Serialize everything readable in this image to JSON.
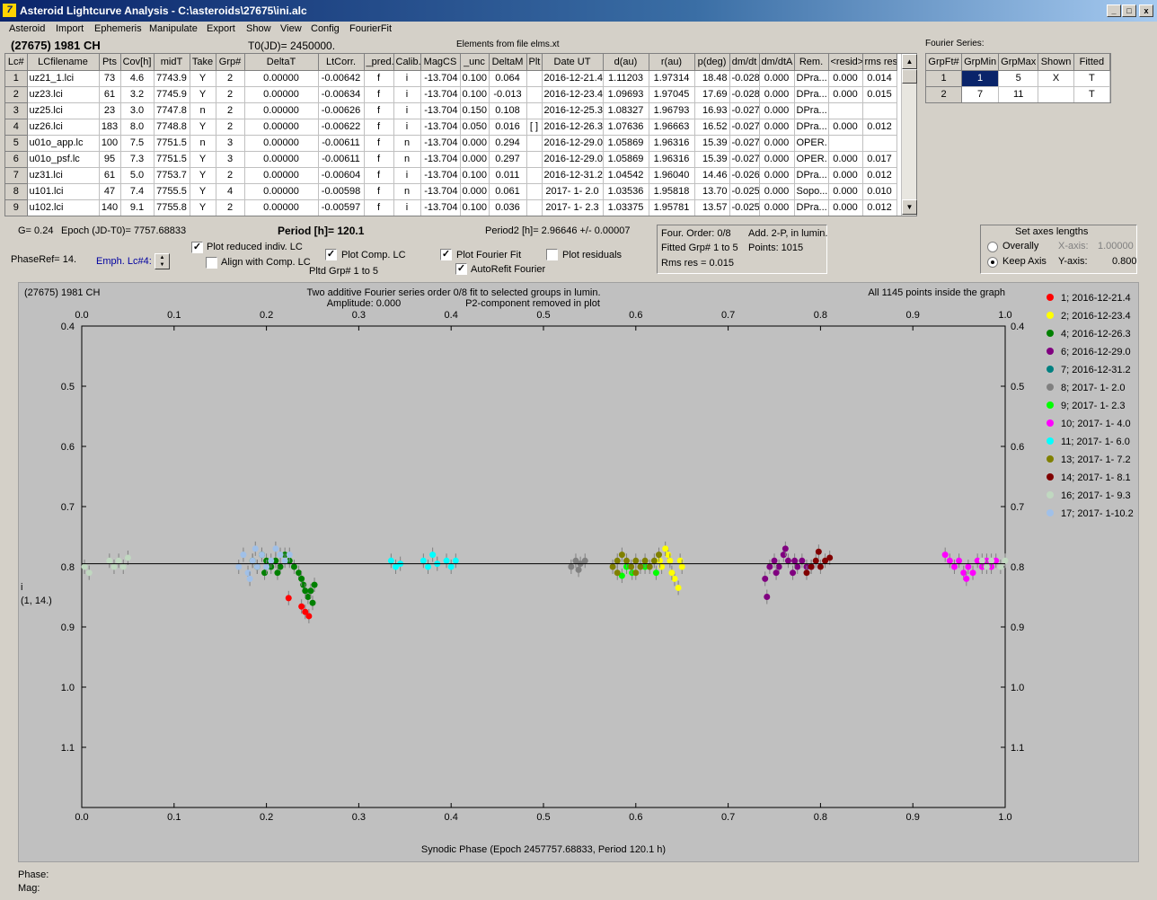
{
  "window": {
    "title": "Asteroid Lightcurve Analysis - C:\\asteroids\\27675\\ini.alc"
  },
  "menu": [
    "Asteroid",
    "Import",
    "Ephemeris",
    "Manipulate",
    "Export",
    "Show",
    "View",
    "Config",
    "FourierFit"
  ],
  "header": {
    "object": "(27675) 1981 CH",
    "t0": "T0(JD)= 2450000.",
    "elements": "Elements from file elms.xt",
    "fourier_title": "Fourier Series:"
  },
  "lc_table": {
    "columns": [
      "Lc#",
      "LCfilename",
      "Pts",
      "Cov[h]",
      "midT",
      "Take",
      "Grp#",
      "DeltaT",
      "LtCorr.",
      "_pred.",
      "Calib.",
      "MagCS",
      "_unc",
      "DeltaM",
      "Plt",
      "Date UT",
      "d(au)",
      "r(au)",
      "p(deg)",
      "dm/dt",
      "dm/dtA",
      "Rem.",
      "<resid>",
      "rms res"
    ],
    "rows": [
      [
        "1",
        "uz21_1.lci",
        "73",
        "4.6",
        "7743.9",
        "Y",
        "2",
        "0.00000",
        "-0.00642",
        "f",
        "i",
        "-13.704",
        "0.100",
        "0.064",
        "",
        "2016-12-21.4",
        "1.11203",
        "1.97314",
        "18.48",
        "-0.028",
        "0.000",
        "DPra...",
        "0.000",
        "0.014"
      ],
      [
        "2",
        "uz23.lci",
        "61",
        "3.2",
        "7745.9",
        "Y",
        "2",
        "0.00000",
        "-0.00634",
        "f",
        "i",
        "-13.704",
        "0.100",
        "-0.013",
        "",
        "2016-12-23.4",
        "1.09693",
        "1.97045",
        "17.69",
        "-0.028",
        "0.000",
        "DPra...",
        "0.000",
        "0.015"
      ],
      [
        "3",
        "uz25.lci",
        "23",
        "3.0",
        "7747.8",
        "n",
        "2",
        "0.00000",
        "-0.00626",
        "f",
        "i",
        "-13.704",
        "0.150",
        "0.108",
        "",
        "2016-12-25.3",
        "1.08327",
        "1.96793",
        "16.93",
        "-0.027",
        "0.000",
        "DPra...",
        "",
        ""
      ],
      [
        "4",
        "uz26.lci",
        "183",
        "8.0",
        "7748.8",
        "Y",
        "2",
        "0.00000",
        "-0.00622",
        "f",
        "i",
        "-13.704",
        "0.050",
        "0.016",
        "[ ]",
        "2016-12-26.3",
        "1.07636",
        "1.96663",
        "16.52",
        "-0.027",
        "0.000",
        "DPra...",
        "0.000",
        "0.012"
      ],
      [
        "5",
        "u01o_app.lc",
        "100",
        "7.5",
        "7751.5",
        "n",
        "3",
        "0.00000",
        "-0.00611",
        "f",
        "n",
        "-13.704",
        "0.000",
        "0.294",
        "",
        "2016-12-29.0",
        "1.05869",
        "1.96316",
        "15.39",
        "-0.027",
        "0.000",
        "OPER.",
        "",
        ""
      ],
      [
        "6",
        "u01o_psf.lc",
        "95",
        "7.3",
        "7751.5",
        "Y",
        "3",
        "0.00000",
        "-0.00611",
        "f",
        "n",
        "-13.704",
        "0.000",
        "0.297",
        "",
        "2016-12-29.0",
        "1.05869",
        "1.96316",
        "15.39",
        "-0.027",
        "0.000",
        "OPER.",
        "0.000",
        "0.017"
      ],
      [
        "7",
        "uz31.lci",
        "61",
        "5.0",
        "7753.7",
        "Y",
        "2",
        "0.00000",
        "-0.00604",
        "f",
        "i",
        "-13.704",
        "0.100",
        "0.011",
        "",
        "2016-12-31.2",
        "1.04542",
        "1.96040",
        "14.46",
        "-0.026",
        "0.000",
        "DPra...",
        "0.000",
        "0.012"
      ],
      [
        "8",
        "u101.lci",
        "47",
        "7.4",
        "7755.5",
        "Y",
        "4",
        "0.00000",
        "-0.00598",
        "f",
        "n",
        "-13.704",
        "0.000",
        "0.061",
        "",
        "2017- 1- 2.0",
        "1.03536",
        "1.95818",
        "13.70",
        "-0.025",
        "0.000",
        "Sopo...",
        "0.000",
        "0.010"
      ],
      [
        "9",
        "u102.lci",
        "140",
        "9.1",
        "7755.8",
        "Y",
        "2",
        "0.00000",
        "-0.00597",
        "f",
        "i",
        "-13.704",
        "0.100",
        "0.036",
        "",
        "2017- 1- 2.3",
        "1.03375",
        "1.95781",
        "13.57",
        "-0.025",
        "0.000",
        "DPra...",
        "0.000",
        "0.012"
      ]
    ]
  },
  "fourier_table": {
    "columns": [
      "GrpFt#",
      "GrpMin",
      "GrpMax",
      "Shown",
      "Fitted"
    ],
    "rows": [
      [
        "1",
        "1",
        "5",
        "X",
        "T"
      ],
      [
        "2",
        "7",
        "11",
        "",
        "T"
      ]
    ]
  },
  "info": {
    "g": "G= 0.24",
    "epoch": "Epoch (JD-T0)= 7757.68833",
    "period": "Period [h]= 120.1",
    "period2": "Period2 [h]= 2.96646 +/- 0.00007",
    "phaseref": "PhaseRef= 14.",
    "emph": "Emph. Lc#4:",
    "four_order": "Four. Order:  0/8",
    "add": "Add. 2-P, in lumin.",
    "fitted": "Fitted Grp# 1 to 5",
    "points": "Points: 1015",
    "rms": "Rms res     = 0.015"
  },
  "options": {
    "plot_reduced": "Plot reduced indiv. LC",
    "align": "Align with Comp. LC",
    "plot_comp": "Plot Comp. LC",
    "pltd": "Pltd Grp#  1   to    5",
    "plot_fourier": "Plot Fourier Fit",
    "autorefit": "AutoRefit Fourier",
    "plot_resid": "Plot residuals"
  },
  "axes_box": {
    "title": "Set axes lengths",
    "overally": "Overally",
    "keep": "Keep Axis",
    "xaxis": "X-axis:",
    "xval": "1.00000",
    "yaxis": "Y-axis:",
    "yval": "0.800"
  },
  "plot": {
    "name": "(27675) 1981 CH",
    "subtitle": "Two additive Fourier series order 0/8 fit to selected groups in lumin.",
    "amp": "Amplitude: 0.000",
    "p2": "P2-component removed in plot",
    "inside": "All 1145 points inside the graph",
    "ylab": "i",
    "ylab2": "(1, 14.)"
  },
  "footer": {
    "phase": "Phase:",
    "mag": "Mag:"
  },
  "chart_data": {
    "type": "scatter",
    "xlabel": "Synodic Phase (Epoch 2457757.68833, Period 120.1 h)",
    "xlim": [
      0,
      1.0
    ],
    "ylim": [
      1.2,
      0.4
    ],
    "xticks": [
      "0.0",
      "0.1",
      "0.2",
      "0.3",
      "0.4",
      "0.5",
      "0.6",
      "0.7",
      "0.8",
      "0.9",
      "1.0"
    ],
    "yticks": [
      "0.4",
      "0.5",
      "0.6",
      "0.7",
      "0.8",
      "0.9",
      "1.0",
      "1.1"
    ],
    "fit_line": 0.795,
    "series": [
      {
        "name": "1; 2016-12-21.4",
        "color": "#ff0000",
        "pts": [
          [
            0.224,
            0.852
          ],
          [
            0.242,
            0.875
          ],
          [
            0.246,
            0.882
          ],
          [
            0.238,
            0.866
          ]
        ]
      },
      {
        "name": "2; 2016-12-23.4",
        "color": "#ffff00",
        "pts": [
          [
            0.628,
            0.8
          ],
          [
            0.635,
            0.78
          ],
          [
            0.642,
            0.82
          ],
          [
            0.648,
            0.79
          ],
          [
            0.632,
            0.77
          ],
          [
            0.639,
            0.81
          ],
          [
            0.646,
            0.835
          ],
          [
            0.626,
            0.79
          ],
          [
            0.65,
            0.8
          ],
          [
            0.637,
            0.79
          ]
        ]
      },
      {
        "name": "4; 2016-12-26.3",
        "color": "#008000",
        "pts": [
          [
            0.185,
            0.79
          ],
          [
            0.19,
            0.8
          ],
          [
            0.195,
            0.78
          ],
          [
            0.2,
            0.79
          ],
          [
            0.205,
            0.8
          ],
          [
            0.21,
            0.79
          ],
          [
            0.215,
            0.8
          ],
          [
            0.22,
            0.78
          ],
          [
            0.225,
            0.79
          ],
          [
            0.23,
            0.8
          ],
          [
            0.235,
            0.81
          ],
          [
            0.24,
            0.83
          ],
          [
            0.245,
            0.85
          ],
          [
            0.25,
            0.86
          ],
          [
            0.242,
            0.84
          ],
          [
            0.238,
            0.82
          ],
          [
            0.248,
            0.84
          ],
          [
            0.252,
            0.83
          ],
          [
            0.198,
            0.81
          ],
          [
            0.212,
            0.81
          ]
        ]
      },
      {
        "name": "6; 2016-12-29.0",
        "color": "#800080",
        "pts": [
          [
            0.74,
            0.82
          ],
          [
            0.745,
            0.8
          ],
          [
            0.75,
            0.79
          ],
          [
            0.755,
            0.8
          ],
          [
            0.76,
            0.78
          ],
          [
            0.765,
            0.79
          ],
          [
            0.77,
            0.81
          ],
          [
            0.775,
            0.8
          ],
          [
            0.78,
            0.79
          ],
          [
            0.785,
            0.8
          ],
          [
            0.742,
            0.85
          ],
          [
            0.752,
            0.81
          ],
          [
            0.762,
            0.77
          ],
          [
            0.772,
            0.79
          ],
          [
            0.79,
            0.8
          ]
        ]
      },
      {
        "name": "7; 2016-12-31.2",
        "color": "#008080",
        "pts": []
      },
      {
        "name": "8; 2017- 1- 2.0",
        "color": "#808080",
        "pts": [
          [
            0.53,
            0.8
          ],
          [
            0.535,
            0.79
          ],
          [
            0.54,
            0.795
          ],
          [
            0.545,
            0.79
          ],
          [
            0.538,
            0.805
          ]
        ]
      },
      {
        "name": "9; 2017- 1- 2.3",
        "color": "#00ff00",
        "pts": [
          [
            0.585,
            0.815
          ],
          [
            0.59,
            0.8
          ],
          [
            0.596,
            0.81
          ],
          [
            0.61,
            0.8
          ],
          [
            0.622,
            0.81
          ]
        ]
      },
      {
        "name": "10; 2017- 1- 4.0",
        "color": "#ff00ff",
        "pts": [
          [
            0.935,
            0.78
          ],
          [
            0.94,
            0.79
          ],
          [
            0.945,
            0.8
          ],
          [
            0.95,
            0.79
          ],
          [
            0.955,
            0.81
          ],
          [
            0.96,
            0.8
          ],
          [
            0.965,
            0.81
          ],
          [
            0.97,
            0.79
          ],
          [
            0.975,
            0.8
          ],
          [
            0.98,
            0.79
          ],
          [
            0.985,
            0.8
          ],
          [
            0.99,
            0.79
          ],
          [
            0.958,
            0.82
          ]
        ]
      },
      {
        "name": "11; 2017- 1- 6.0",
        "color": "#00ffff",
        "pts": [
          [
            0.335,
            0.79
          ],
          [
            0.34,
            0.8
          ],
          [
            0.345,
            0.795
          ],
          [
            0.37,
            0.79
          ],
          [
            0.375,
            0.8
          ],
          [
            0.38,
            0.78
          ],
          [
            0.385,
            0.795
          ],
          [
            0.395,
            0.79
          ],
          [
            0.4,
            0.8
          ],
          [
            0.405,
            0.79
          ]
        ]
      },
      {
        "name": "13; 2017- 1- 7.2",
        "color": "#808000",
        "pts": [
          [
            0.575,
            0.8
          ],
          [
            0.58,
            0.79
          ],
          [
            0.585,
            0.78
          ],
          [
            0.59,
            0.79
          ],
          [
            0.595,
            0.8
          ],
          [
            0.6,
            0.79
          ],
          [
            0.605,
            0.8
          ],
          [
            0.61,
            0.79
          ],
          [
            0.615,
            0.8
          ],
          [
            0.62,
            0.79
          ],
          [
            0.625,
            0.78
          ],
          [
            0.6,
            0.81
          ],
          [
            0.58,
            0.81
          ]
        ]
      },
      {
        "name": "14; 2017- 1- 8.1",
        "color": "#800000",
        "pts": [
          [
            0.79,
            0.8
          ],
          [
            0.795,
            0.79
          ],
          [
            0.8,
            0.8
          ],
          [
            0.805,
            0.79
          ],
          [
            0.81,
            0.785
          ],
          [
            0.785,
            0.81
          ],
          [
            0.798,
            0.775
          ]
        ]
      },
      {
        "name": "16; 2017- 1- 9.3",
        "color": "#c0d8c0",
        "pts": [
          [
            0.003,
            0.8
          ],
          [
            0.008,
            0.81
          ],
          [
            0.03,
            0.79
          ],
          [
            0.035,
            0.8
          ],
          [
            0.04,
            0.79
          ],
          [
            0.045,
            0.8
          ],
          [
            0.05,
            0.785
          ],
          [
            0.975,
            0.79
          ],
          [
            0.98,
            0.8
          ],
          [
            0.985,
            0.79
          ],
          [
            0.995,
            0.8
          ],
          [
            1.0,
            0.79
          ]
        ]
      },
      {
        "name": "17; 2017- 1-10.2",
        "color": "#a0c0e8",
        "pts": [
          [
            0.17,
            0.8
          ],
          [
            0.175,
            0.78
          ],
          [
            0.18,
            0.81
          ],
          [
            0.185,
            0.79
          ],
          [
            0.19,
            0.8
          ],
          [
            0.195,
            0.78
          ],
          [
            0.2,
            0.8
          ],
          [
            0.205,
            0.79
          ],
          [
            0.21,
            0.77
          ],
          [
            0.215,
            0.78
          ],
          [
            0.22,
            0.79
          ],
          [
            0.225,
            0.78
          ],
          [
            0.182,
            0.82
          ],
          [
            0.188,
            0.77
          ]
        ]
      }
    ]
  }
}
